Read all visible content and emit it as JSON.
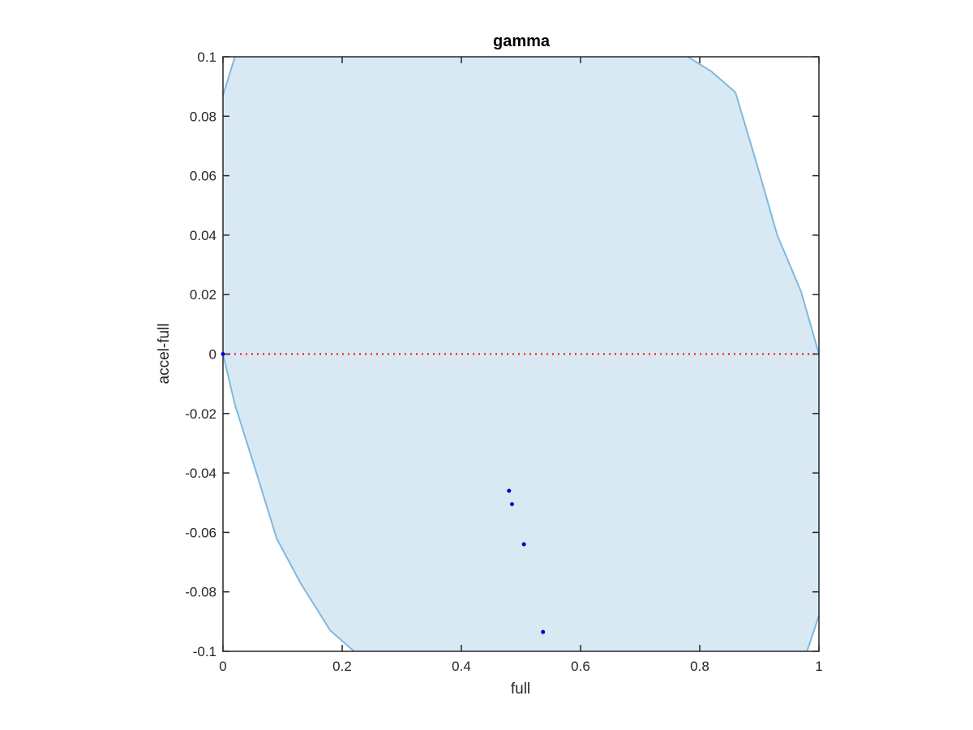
{
  "chart_data": {
    "type": "scatter",
    "title": "gamma",
    "xlabel": "full",
    "ylabel": "accel-full",
    "xlim": [
      0,
      1
    ],
    "ylim": [
      -0.1,
      0.1
    ],
    "xticks": [
      0,
      0.2,
      0.4,
      0.6,
      0.8,
      1
    ],
    "xtick_labels": [
      "0",
      "0.2",
      "0.4",
      "0.6",
      "0.8",
      "1"
    ],
    "yticks": [
      -0.1,
      -0.08,
      -0.06,
      -0.04,
      -0.02,
      0,
      0.02,
      0.04,
      0.06,
      0.08,
      0.1
    ],
    "ytick_labels": [
      "-0.1",
      "-0.08",
      "-0.06",
      "-0.04",
      "-0.02",
      "0",
      "0.02",
      "0.04",
      "0.06",
      "0.08",
      "0.1"
    ],
    "grid": false,
    "region": {
      "fill_color": "#d9e9f4",
      "edge_color": "#7fb8e0",
      "boundary": [
        [
          0,
          0.087
        ],
        [
          0.02,
          0.1
        ],
        [
          0.78,
          0.1
        ],
        [
          0.82,
          0.095
        ],
        [
          0.86,
          0.088
        ],
        [
          0.9,
          0.061
        ],
        [
          0.93,
          0.04
        ],
        [
          0.97,
          0.021
        ],
        [
          1,
          0
        ],
        [
          1,
          -0.088
        ],
        [
          0.98,
          -0.1
        ],
        [
          0.22,
          -0.1
        ],
        [
          0.18,
          -0.093
        ],
        [
          0.13,
          -0.077
        ],
        [
          0.09,
          -0.062
        ],
        [
          0.05,
          -0.036
        ],
        [
          0.02,
          -0.017
        ],
        [
          0,
          0
        ]
      ]
    },
    "reference_line": {
      "y": 0,
      "color": "#ff0000",
      "style": "dotted"
    },
    "points": {
      "color": "#0000cc",
      "x": [
        0.0,
        0.48,
        0.485,
        0.505,
        0.537
      ],
      "y": [
        0.0,
        -0.046,
        -0.0505,
        -0.064,
        -0.0935
      ]
    }
  }
}
